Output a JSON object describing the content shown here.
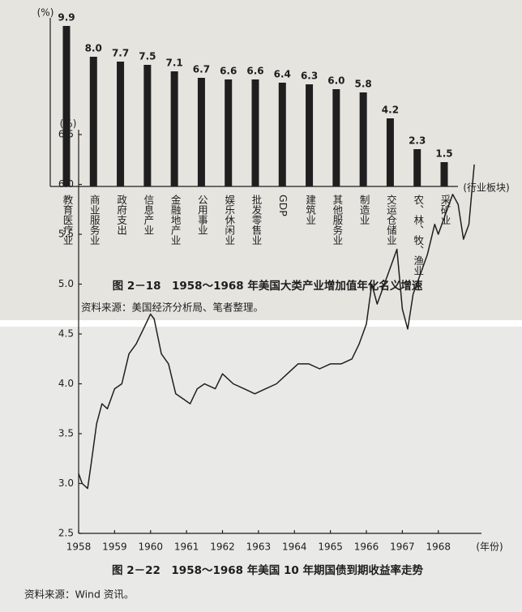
{
  "chart_data": [
    {
      "type": "bar",
      "title": "图 2－18　1958～1968 年美国大类产业增加值年化名义增速",
      "source": "资料来源：美国经济分析局、笔者整理。",
      "y_label": "(%)",
      "x_label": "(行业板块)",
      "categories": [
        "教育医疗业",
        "商业服务业",
        "政府支出",
        "信息产业",
        "金融地产业",
        "公用事业",
        "娱乐休闲业",
        "批发零售业",
        "GDP",
        "建筑业",
        "其他服务业",
        "制造业",
        "交运仓储业",
        "农、林、牧、渔业",
        "采矿业"
      ],
      "values": [
        9.9,
        8.0,
        7.7,
        7.5,
        7.1,
        6.7,
        6.6,
        6.6,
        6.4,
        6.3,
        6.0,
        5.8,
        4.2,
        2.3,
        1.5
      ],
      "value_labels": [
        "9.9",
        "8.0",
        "7.7",
        "7.5",
        "7.1",
        "6.7",
        "6.6",
        "6.6",
        "6.4",
        "6.3",
        "6.0",
        "5.8",
        "4.2",
        "2.3",
        "1.5"
      ],
      "color": "#1f1f1f",
      "ylim": [
        0,
        10
      ]
    },
    {
      "type": "line",
      "title": "图 2－22　1958～1968 年美国 10 年期国债到期收益率走势",
      "source": "资料来源：Wind 资讯。",
      "y_label": "(%)",
      "x_label": "(年份)",
      "x": [
        1958.0,
        1958.1,
        1958.25,
        1958.35,
        1958.5,
        1958.65,
        1958.8,
        1959.0,
        1959.2,
        1959.4,
        1959.6,
        1959.8,
        1960.0,
        1960.1,
        1960.3,
        1960.5,
        1960.7,
        1960.9,
        1961.1,
        1961.3,
        1961.5,
        1961.8,
        1962.0,
        1962.3,
        1962.6,
        1962.9,
        1963.2,
        1963.5,
        1963.8,
        1964.1,
        1964.4,
        1964.7,
        1965.0,
        1965.3,
        1965.6,
        1965.8,
        1966.0,
        1966.15,
        1966.3,
        1966.5,
        1966.7,
        1966.85,
        1967.0,
        1967.15,
        1967.3,
        1967.5,
        1967.7,
        1967.9,
        1968.0,
        1968.2,
        1968.4,
        1968.55,
        1968.7,
        1968.85,
        1969.0
      ],
      "values": [
        3.1,
        3.0,
        2.95,
        3.2,
        3.6,
        3.8,
        3.75,
        3.95,
        4.0,
        4.3,
        4.4,
        4.55,
        4.7,
        4.65,
        4.3,
        4.2,
        3.9,
        3.85,
        3.8,
        3.95,
        4.0,
        3.95,
        4.1,
        4.0,
        3.95,
        3.9,
        3.95,
        4.0,
        4.1,
        4.2,
        4.2,
        4.15,
        4.2,
        4.2,
        4.25,
        4.4,
        4.6,
        5.0,
        4.8,
        5.0,
        5.2,
        5.35,
        4.75,
        4.55,
        4.9,
        5.1,
        5.3,
        5.6,
        5.5,
        5.7,
        5.9,
        5.8,
        5.45,
        5.6,
        6.2
      ],
      "color": "#1f1f1f",
      "xlim": [
        1958,
        1969.2
      ],
      "xticks": [
        1958,
        1959,
        1960,
        1961,
        1962,
        1963,
        1964,
        1965,
        1966,
        1967,
        1968
      ],
      "ylim": [
        2.5,
        6.5
      ],
      "yticks": [
        2.5,
        {
          "value": 3.0,
          "label": "3.0"
        },
        3.5,
        {
          "value": 4.0,
          "label": "4.0"
        },
        4.5,
        {
          "value": 5.0,
          "label": "5.0"
        },
        5.5,
        {
          "value": 6.0,
          "label": "6.0"
        },
        6.5
      ]
    }
  ]
}
